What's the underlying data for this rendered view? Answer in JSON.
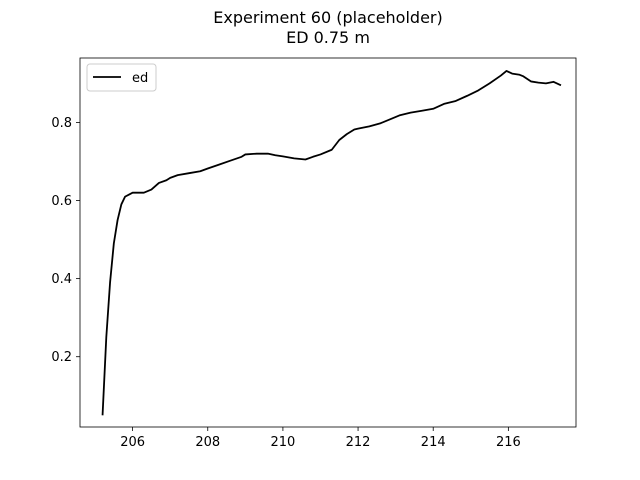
{
  "chart_data": {
    "type": "line",
    "title": "Experiment 60 (placeholder)",
    "subtitle": "ED 0.75 m",
    "xlabel": "",
    "ylabel": "",
    "xlim": [
      204.6,
      217.8
    ],
    "ylim": [
      0.02,
      0.965
    ],
    "xticks": [
      206,
      208,
      210,
      212,
      214,
      216
    ],
    "yticks": [
      0.2,
      0.4,
      0.6,
      0.8
    ],
    "grid": false,
    "legend": "top-left",
    "series": [
      {
        "name": "ed",
        "color": "#000000",
        "x": [
          205.2,
          205.3,
          205.4,
          205.5,
          205.6,
          205.7,
          205.8,
          205.9,
          206.0,
          206.1,
          206.2,
          206.3,
          206.5,
          206.7,
          206.9,
          207.0,
          207.2,
          207.5,
          207.8,
          208.0,
          208.3,
          208.6,
          208.9,
          209.0,
          209.3,
          209.6,
          209.8,
          210.0,
          210.3,
          210.6,
          210.8,
          211.0,
          211.3,
          211.5,
          211.7,
          211.9,
          212.0,
          212.3,
          212.6,
          212.9,
          213.1,
          213.4,
          213.7,
          214.0,
          214.3,
          214.6,
          214.9,
          215.2,
          215.5,
          215.8,
          215.95,
          216.1,
          216.3,
          216.4,
          216.6,
          216.8,
          217.0,
          217.2,
          217.4
        ],
        "y": [
          0.05,
          0.25,
          0.39,
          0.49,
          0.55,
          0.59,
          0.61,
          0.615,
          0.62,
          0.62,
          0.62,
          0.62,
          0.628,
          0.645,
          0.652,
          0.658,
          0.665,
          0.67,
          0.675,
          0.682,
          0.692,
          0.702,
          0.712,
          0.718,
          0.72,
          0.72,
          0.716,
          0.713,
          0.708,
          0.705,
          0.712,
          0.718,
          0.73,
          0.755,
          0.77,
          0.782,
          0.784,
          0.79,
          0.798,
          0.81,
          0.818,
          0.825,
          0.83,
          0.835,
          0.848,
          0.855,
          0.868,
          0.882,
          0.9,
          0.92,
          0.932,
          0.925,
          0.922,
          0.918,
          0.905,
          0.902,
          0.9,
          0.904,
          0.895
        ]
      }
    ]
  }
}
